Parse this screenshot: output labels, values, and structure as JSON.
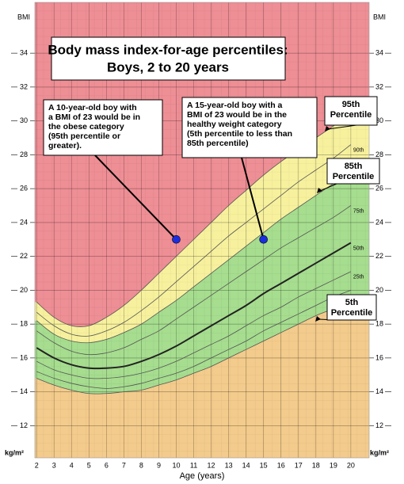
{
  "chart_data": {
    "type": "line",
    "title": "Body mass index-for-age percentiles:",
    "subtitle": "Boys, 2 to 20 years",
    "x_label": "Age (years)",
    "y_unit_top": "BMI",
    "y_unit_bottom": "kg/m²",
    "x": [
      2,
      3,
      4,
      5,
      6,
      7,
      8,
      9,
      10,
      11,
      12,
      13,
      14,
      15,
      16,
      17,
      18,
      19,
      20
    ],
    "xlim": [
      1.9,
      21.05
    ],
    "ylim": [
      10.1,
      37
    ],
    "xticks": [
      2,
      3,
      4,
      5,
      6,
      7,
      8,
      9,
      10,
      11,
      12,
      13,
      14,
      15,
      16,
      17,
      18,
      19,
      20
    ],
    "yticks": [
      12,
      14,
      16,
      18,
      20,
      22,
      24,
      26,
      28,
      30,
      32,
      34
    ],
    "grid": true,
    "background": "#ee8e95",
    "series": [
      {
        "color": "#555555",
        "line_width": 0.8,
        "fill_below": "#f3cb8c",
        "values": [
          14.8,
          14.4,
          14.1,
          13.9,
          13.9,
          14.0,
          14.1,
          14.4,
          14.7,
          15.1,
          15.5,
          16.0,
          16.5,
          17.0,
          17.5,
          18.0,
          18.5,
          18.9,
          19.3
        ]
      },
      {
        "color": "#555555",
        "line_width": 0.8,
        "values": [
          15.2,
          14.8,
          14.5,
          14.3,
          14.2,
          14.3,
          14.5,
          14.8,
          15.1,
          15.5,
          16.0,
          16.5,
          17.0,
          17.6,
          18.1,
          18.6,
          19.1,
          19.6,
          20.0
        ]
      },
      {
        "name": "25th",
        "color": "#555555",
        "line_width": 0.8,
        "values": [
          15.8,
          15.3,
          15.0,
          14.8,
          14.8,
          14.9,
          15.1,
          15.4,
          15.8,
          16.3,
          16.8,
          17.3,
          17.9,
          18.5,
          19.0,
          19.6,
          20.1,
          20.6,
          21.1
        ]
      },
      {
        "name": "50th",
        "color": "#222222",
        "line_width": 2,
        "values": [
          16.6,
          16.0,
          15.6,
          15.4,
          15.4,
          15.5,
          15.8,
          16.2,
          16.7,
          17.3,
          17.9,
          18.5,
          19.1,
          19.8,
          20.4,
          21.0,
          21.6,
          22.2,
          22.8
        ]
      },
      {
        "name": "75th",
        "color": "#555555",
        "line_width": 0.8,
        "values": [
          17.6,
          16.9,
          16.4,
          16.2,
          16.3,
          16.6,
          17.1,
          17.6,
          18.3,
          19.0,
          19.7,
          20.4,
          21.1,
          21.8,
          22.5,
          23.1,
          23.7,
          24.3,
          25.0
        ]
      },
      {
        "color": "#555555",
        "line_width": 0.8,
        "fill_below": "#a6dd8f",
        "values": [
          18.2,
          17.4,
          17.0,
          16.9,
          17.1,
          17.5,
          18.0,
          18.7,
          19.4,
          20.2,
          21.0,
          21.8,
          22.6,
          23.4,
          24.2,
          24.9,
          25.6,
          26.3,
          27.0
        ]
      },
      {
        "name": "90th",
        "color": "#555555",
        "line_width": 0.8,
        "values": [
          18.7,
          17.9,
          17.4,
          17.3,
          17.6,
          18.1,
          18.8,
          19.6,
          20.5,
          21.4,
          22.3,
          23.2,
          24.0,
          24.8,
          25.6,
          26.4,
          27.1,
          27.8,
          28.6
        ]
      },
      {
        "color": "#555555",
        "line_width": 0.8,
        "fill_below": "#f7f19e",
        "values": [
          19.3,
          18.4,
          17.9,
          17.9,
          18.4,
          19.1,
          20.0,
          21.0,
          22.0,
          23.0,
          24.0,
          25.0,
          25.9,
          26.8,
          27.6,
          28.3,
          29.0,
          29.7,
          30.4
        ]
      }
    ],
    "annotations": [
      {
        "x": 10,
        "y": 23,
        "color": "#1a2ee0",
        "lines": [
          "A 10-year-old boy with",
          "a BMI of 23 would be in",
          "the obese category",
          "(95th percentile or",
          "greater)."
        ]
      },
      {
        "x": 15,
        "y": 23,
        "color": "#1a2ee0",
        "lines": [
          "A 15-year-old boy with a",
          "BMI of 23 would be in the",
          "healthy weight category",
          "(5th percentile to less than",
          "85th percentile)"
        ]
      }
    ],
    "callouts": [
      {
        "lines": [
          "95th",
          "Percentile"
        ]
      },
      {
        "lines": [
          "85th",
          "Percentile"
        ]
      },
      {
        "lines": [
          "5th",
          "Percentile"
        ]
      }
    ]
  }
}
